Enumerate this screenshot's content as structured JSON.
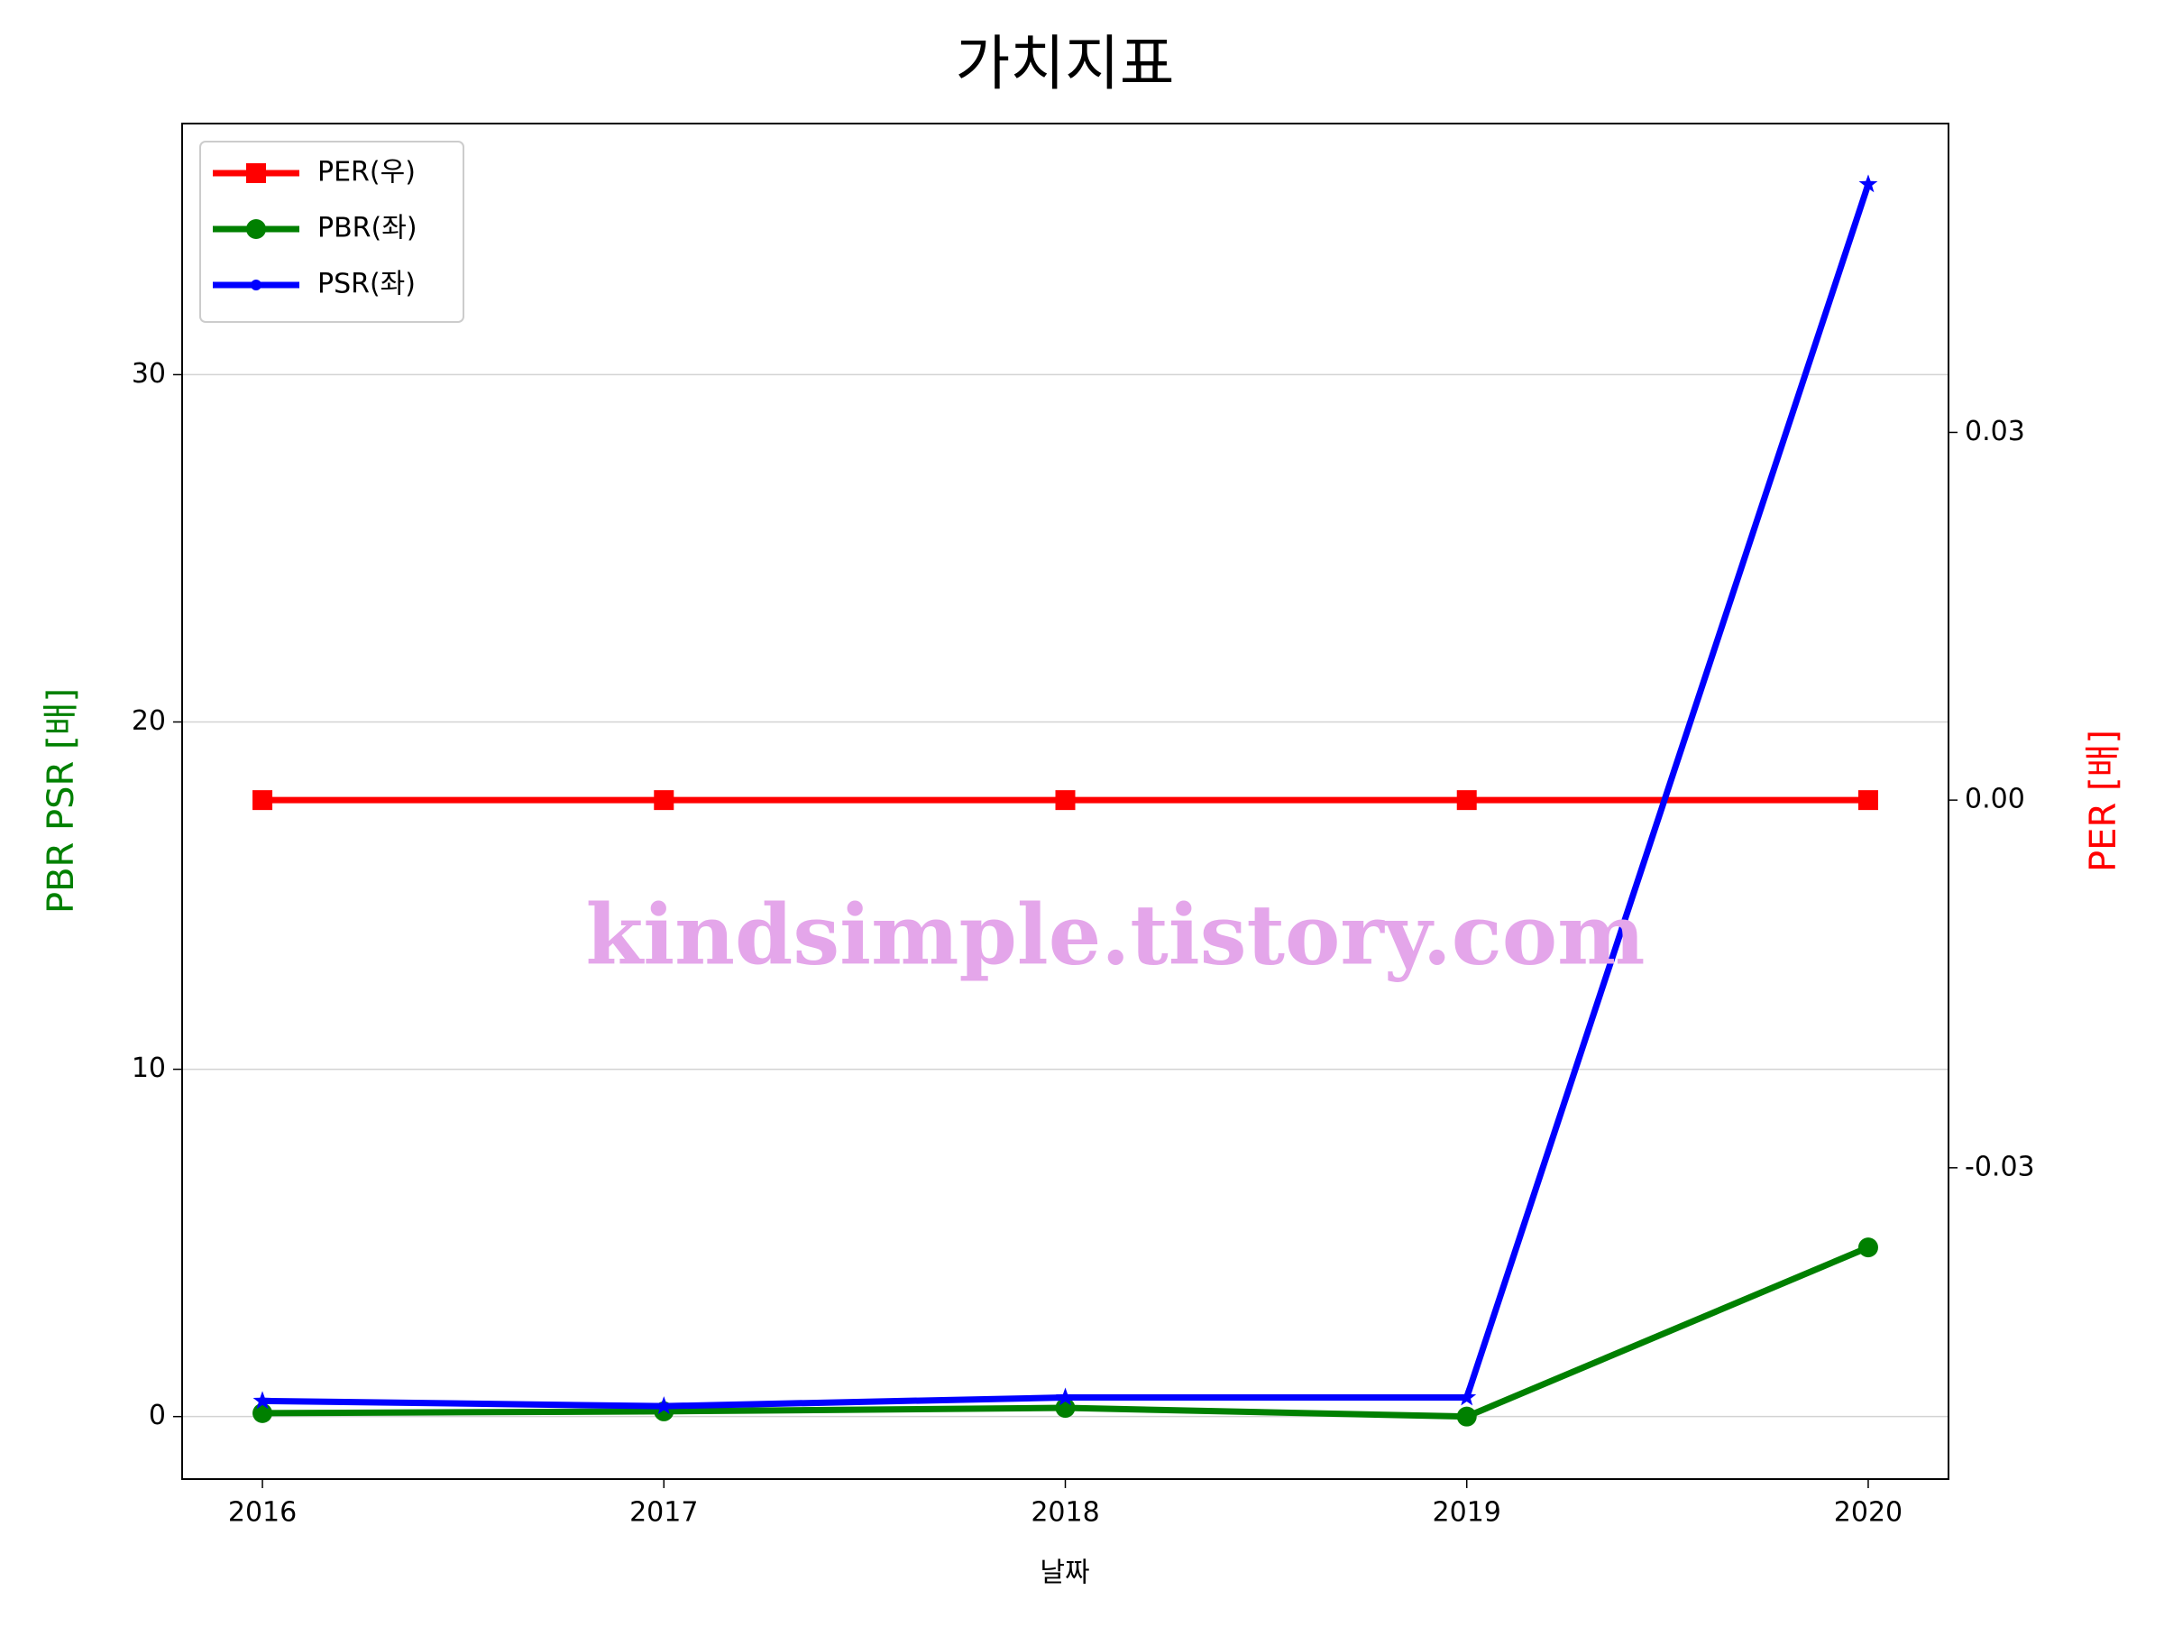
{
  "chart_data": {
    "type": "line",
    "title": "가치지표",
    "xlabel": "날짜",
    "ylabel": "PBR PSR [배]",
    "y2label": "PER [배]",
    "annotation": "kindsimple.tistory.com",
    "x": [
      2016,
      2017,
      2018,
      2019,
      2020
    ],
    "xlim": [
      2015.8,
      2020.2
    ],
    "xticks": [
      2016,
      2017,
      2018,
      2019,
      2020
    ],
    "ylim": [
      -1.8,
      37.23
    ],
    "yticks": [
      0,
      10,
      20,
      30
    ],
    "y2lim": [
      -0.0554,
      0.0552
    ],
    "y2ticks": [
      -0.03,
      {
        "value": 0,
        "label": "0.00"
      },
      0.03
    ],
    "grid": true,
    "legend": "upper left",
    "series": [
      {
        "name": "PER(우)",
        "color": "#ff0000",
        "marker": "square",
        "axis": "y2",
        "values": [
          0,
          0,
          0,
          0,
          0
        ]
      },
      {
        "name": "PBR(좌)",
        "color": "#008000",
        "marker": "circle",
        "values": [
          0.1,
          0.15,
          0.25,
          0.0,
          4.87
        ]
      },
      {
        "name": "PSR(좌)",
        "color": "#0000ff",
        "marker": "star",
        "values": [
          0.45,
          0.3,
          0.55,
          0.55,
          35.48
        ]
      }
    ]
  }
}
